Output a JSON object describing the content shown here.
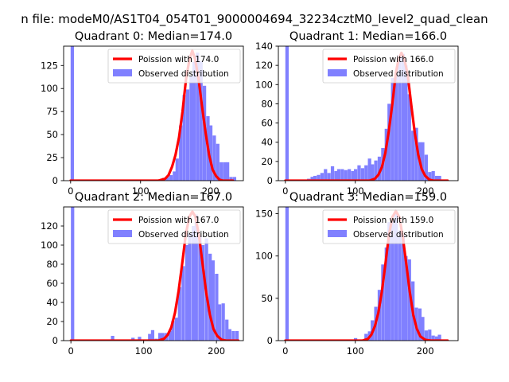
{
  "figure": {
    "suptitle": "n file: modeM0/AS1T04_054T01_9000004694_32234cztM0_level2_quad_clean"
  },
  "chart_data": [
    {
      "type": "bar",
      "title": "Quadrant 0: Median=174.0",
      "median": 174.0,
      "xlim": [
        -10,
        247
      ],
      "ylim": [
        0,
        146
      ],
      "xticks": [
        0,
        100,
        200
      ],
      "yticks": [
        0,
        25,
        50,
        75,
        100,
        125
      ],
      "bin_width": 4.8,
      "histogram": {
        "name": "Observed distribution",
        "color": "#8080ff",
        "x": [
          0,
          117,
          122,
          127,
          131,
          136,
          141,
          146,
          150,
          155,
          160,
          165,
          170,
          174,
          179,
          184,
          189,
          194,
          198,
          203,
          208,
          213,
          218,
          222,
          227,
          232
        ],
        "y": [
          146,
          0,
          1,
          1,
          3,
          4,
          6,
          10,
          24,
          60,
          93,
          99,
          113,
          129,
          139,
          130,
          103,
          70,
          60,
          49,
          40,
          20,
          20,
          20,
          4,
          4
        ]
      },
      "poisson": {
        "name": "Poission with 174.0",
        "color": "#ff0000",
        "x": [
          0,
          115,
          125,
          135,
          140,
          145,
          150,
          155,
          160,
          165,
          170,
          174,
          178,
          183,
          188,
          193,
          198,
          203,
          208,
          213,
          218,
          225,
          232
        ],
        "y": [
          0,
          0,
          0,
          2,
          6,
          15,
          28,
          47,
          75,
          110,
          132,
          141,
          132,
          110,
          80,
          52,
          28,
          12,
          5,
          1,
          0,
          0,
          0
        ]
      },
      "legend": "upper right"
    },
    {
      "type": "bar",
      "title": "Quadrant 1: Median=166.0",
      "median": 166.0,
      "xlim": [
        -10,
        247
      ],
      "ylim": [
        0,
        140
      ],
      "xticks": [
        0,
        100,
        200
      ],
      "yticks": [
        0,
        20,
        40,
        60,
        80,
        100,
        120,
        140
      ],
      "bin_width": 4.8,
      "histogram": {
        "name": "Observed distribution",
        "color": "#8080ff",
        "x": [
          0,
          26,
          31,
          36,
          40,
          45,
          50,
          55,
          60,
          65,
          70,
          74,
          79,
          84,
          89,
          94,
          98,
          103,
          108,
          113,
          118,
          122,
          127,
          132,
          137,
          142,
          146,
          151,
          156,
          161,
          166,
          170,
          175,
          180,
          185,
          190,
          194,
          199,
          204,
          209,
          214,
          218
        ],
        "y": [
          140,
          0,
          2,
          4,
          5,
          6,
          8,
          12,
          8,
          15,
          10,
          12,
          12,
          11,
          12,
          10,
          12,
          16,
          13,
          16,
          23,
          17,
          21,
          25,
          34,
          54,
          80,
          107,
          111,
          130,
          132,
          120,
          90,
          52,
          55,
          40,
          40,
          27,
          9,
          10,
          5,
          5
        ]
      },
      "poisson": {
        "name": "Poission with 166.0",
        "color": "#ff0000",
        "x": [
          0,
          110,
          120,
          128,
          133,
          138,
          143,
          148,
          153,
          158,
          162,
          166,
          170,
          175,
          180,
          185,
          190,
          195,
          200,
          206,
          212,
          220,
          232
        ],
        "y": [
          0,
          0,
          0,
          2,
          6,
          14,
          29,
          52,
          80,
          112,
          127,
          133,
          127,
          110,
          79,
          50,
          27,
          12,
          5,
          1,
          0,
          0,
          0
        ]
      },
      "legend": "upper right"
    },
    {
      "type": "bar",
      "title": "Quadrant 2: Median=167.0",
      "median": 167.0,
      "xlim": [
        -10,
        237
      ],
      "ylim": [
        0,
        140
      ],
      "xticks": [
        0,
        100,
        200
      ],
      "yticks": [
        0,
        20,
        40,
        60,
        80,
        100,
        120
      ],
      "bin_width": 4.6,
      "histogram": {
        "name": "Observed distribution",
        "color": "#8080ff",
        "x": [
          0,
          55,
          83,
          92,
          106,
          110,
          115,
          120,
          124,
          129,
          134,
          138,
          143,
          147,
          152,
          157,
          161,
          166,
          170,
          175,
          179,
          184,
          189,
          193,
          198,
          202,
          207,
          212,
          216,
          221,
          226
        ],
        "y": [
          140,
          5,
          3,
          4,
          7,
          11,
          2,
          8,
          8,
          8,
          10,
          21,
          24,
          56,
          78,
          100,
          112,
          120,
          132,
          110,
          100,
          107,
          91,
          84,
          70,
          38,
          39,
          22,
          12,
          10,
          10
        ]
      },
      "poisson": {
        "name": "Poission with 167.0",
        "color": "#ff0000",
        "x": [
          0,
          110,
          120,
          128,
          133,
          138,
          143,
          148,
          153,
          158,
          163,
          167,
          171,
          176,
          181,
          186,
          191,
          196,
          201,
          207,
          213,
          222,
          230
        ],
        "y": [
          0,
          0,
          0,
          2,
          6,
          14,
          29,
          52,
          81,
          112,
          130,
          135,
          130,
          110,
          80,
          50,
          27,
          12,
          5,
          1,
          0,
          0,
          0
        ]
      },
      "legend": "upper right"
    },
    {
      "type": "bar",
      "title": "Quadrant 3: Median=159.0",
      "median": 159.0,
      "xlim": [
        -10,
        247
      ],
      "ylim": [
        0,
        158
      ],
      "xticks": [
        0,
        100,
        200
      ],
      "yticks": [
        0,
        50,
        100,
        150
      ],
      "bin_width": 4.8,
      "histogram": {
        "name": "Observed distribution",
        "color": "#8080ff",
        "x": [
          0,
          60,
          98,
          113,
          118,
          122,
          127,
          132,
          137,
          142,
          146,
          151,
          156,
          161,
          166,
          170,
          175,
          180,
          185,
          190,
          194,
          199,
          204,
          209,
          214,
          218
        ],
        "y": [
          158,
          1,
          3,
          8,
          11,
          24,
          40,
          60,
          90,
          110,
          140,
          142,
          150,
          130,
          125,
          100,
          96,
          70,
          39,
          38,
          28,
          12,
          13,
          6,
          5,
          7
        ]
      },
      "poisson": {
        "name": "Poission with 159.0",
        "color": "#ff0000",
        "x": [
          0,
          100,
          110,
          118,
          123,
          128,
          133,
          138,
          143,
          148,
          153,
          158,
          163,
          168,
          173,
          178,
          183,
          188,
          193,
          200,
          208,
          220,
          232
        ],
        "y": [
          0,
          0,
          0,
          2,
          7,
          17,
          33,
          58,
          90,
          124,
          146,
          153,
          146,
          122,
          90,
          57,
          30,
          14,
          5,
          1,
          0,
          0,
          0
        ]
      },
      "legend": "upper right"
    }
  ]
}
